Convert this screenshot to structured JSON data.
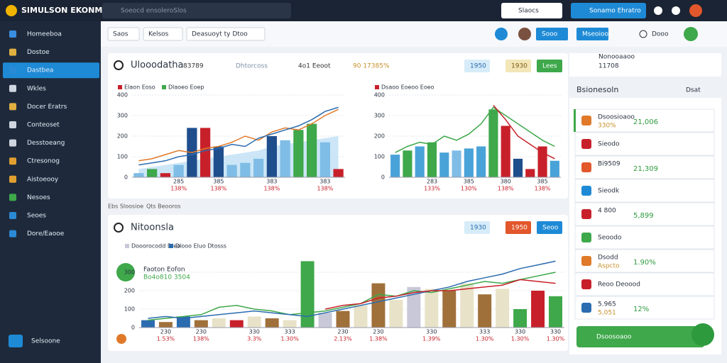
{
  "header": {
    "logo": "SIMULSON EKONMIA",
    "search": "Soeocd ensoleroSlos",
    "search_button": "Slaocs",
    "primary_button": "Sonamo Ehratro"
  },
  "sidebar": {
    "items": [
      "Homeeboa",
      "Dostoe",
      "Dastbea",
      "Wkles",
      "Docer Eratrs",
      "Conteoset",
      "Desstoeang",
      "Ctresonog",
      "Aistoeooy",
      "Nesoes",
      "Seoes",
      "Dore/Eaooe"
    ],
    "active": 2,
    "footer": "Selsoone"
  },
  "toolbar": {
    "filters": [
      "Saos",
      "Kelsos",
      "Deasuoyt ty Dtoo"
    ],
    "buttons": [
      "Sooo",
      "Mseoioos"
    ],
    "menu": "Dooo"
  },
  "panel1": {
    "title": "Ulooodatha",
    "stats": [
      "83789",
      "Dhtorcoss",
      "4o1 Eeoot",
      "90 17385%"
    ],
    "badges": [
      "1950",
      "1930",
      "Lees"
    ],
    "charts": [
      {
        "type": "bar",
        "legend": [
          "Elaon Eoso",
          "Dlaoeo Eoep"
        ],
        "legend_colors": [
          "#c8202a",
          "#3ea84a"
        ],
        "ylim": [
          0,
          400
        ],
        "yticks": [
          0,
          100,
          200,
          300,
          400
        ],
        "categories": [
          null,
          null,
          null,
          "285",
          null,
          null,
          "385",
          null,
          null,
          null,
          "383",
          null,
          null,
          null,
          "383",
          null
        ],
        "category_notes": [
          null,
          null,
          null,
          "138%",
          null,
          null,
          "138%",
          null,
          null,
          null,
          "138%",
          null,
          null,
          null,
          "138%",
          null
        ],
        "bars": {
          "values": [
            20,
            40,
            20,
            60,
            240,
            240,
            150,
            60,
            70,
            90,
            200,
            180,
            230,
            260,
            170,
            40
          ],
          "colors": [
            "#7fbde6",
            "#3ea84a",
            "#c8202a",
            "#7fbde6",
            "#1f4e8c",
            "#c8202a",
            "#1f4e8c",
            "#7fbde6",
            "#7fbde6",
            "#7fbde6",
            "#1f4e8c",
            "#7fbde6",
            "#3ea84a",
            "#3ea84a",
            "#7fbde6",
            "#c8202a"
          ]
        },
        "area": {
          "color": "#bfe0f5",
          "values": [
            40,
            50,
            60,
            70,
            80,
            90,
            100,
            110,
            120,
            130,
            150,
            160,
            170,
            180,
            190,
            200
          ]
        },
        "lines": [
          {
            "color": "#e07a2a",
            "values": [
              80,
              90,
              110,
              130,
              120,
              140,
              150,
              170,
              200,
              180,
              220,
              240,
              230,
              260,
              300,
              330
            ]
          },
          {
            "color": "#2b6cb0",
            "values": [
              60,
              70,
              80,
              100,
              110,
              130,
              140,
              160,
              150,
              190,
              210,
              230,
              250,
              280,
              320,
              340
            ]
          }
        ]
      },
      {
        "type": "bar",
        "legend": [
          "Dsaoo Eoeoo Eoeo"
        ],
        "legend_colors": [
          "#c8202a"
        ],
        "ylim": [
          0,
          400
        ],
        "yticks": [
          0,
          100,
          200,
          300,
          400
        ],
        "categories": [
          null,
          null,
          null,
          "283",
          null,
          null,
          "385",
          null,
          null,
          "380",
          null,
          null,
          "385",
          null
        ],
        "category_notes": [
          null,
          null,
          null,
          "133%",
          null,
          null,
          "130%",
          null,
          null,
          "138%",
          null,
          null,
          "138%",
          null
        ],
        "bars": {
          "values": [
            110,
            130,
            150,
            170,
            120,
            130,
            140,
            150,
            330,
            250,
            90,
            40,
            150,
            80
          ],
          "colors": [
            "#4aa3d8",
            "#3ea84a",
            "#4aa3d8",
            "#3ea84a",
            "#4aa3d8",
            "#7fbde6",
            "#4aa3d8",
            "#4aa3d8",
            "#3ea84a",
            "#c8202a",
            "#1f4e8c",
            "#c8202a",
            "#c8202a",
            "#4aa3d8"
          ]
        },
        "lines": [
          {
            "color": "#3ea84a",
            "values": [
              120,
              150,
              170,
              160,
              200,
              180,
              210,
              260,
              340,
              300,
              260,
              220,
              180,
              150
            ]
          },
          {
            "color": "#c8202a",
            "values": [
              null,
              null,
              null,
              null,
              null,
              null,
              null,
              null,
              350,
              280,
              200,
              160,
              120,
              90
            ]
          }
        ]
      }
    ]
  },
  "strip": [
    "Ebs Sloosioe",
    "Qts Beooros"
  ],
  "panel2": {
    "title": "Nitoonsla",
    "badges": [
      "1930",
      "1950",
      "Seoo"
    ],
    "note_title": "Faoton Eofon",
    "note_value": "Bo4o810 3504",
    "chart": {
      "type": "bar",
      "legend": [
        "Dooorocodd Dleo",
        "Dlooo Eluo Dtosss"
      ],
      "legend_colors": [
        "#c8c8d8",
        "#2b6cb0"
      ],
      "ylim": [
        0,
        400
      ],
      "yticks": [
        0,
        100,
        200,
        300
      ],
      "categories": [
        null,
        "230",
        null,
        "230",
        null,
        null,
        "330",
        null,
        "333",
        null,
        null,
        "230",
        null,
        "230",
        null,
        null,
        "330",
        null,
        null,
        "333",
        null,
        "330",
        null,
        "330"
      ],
      "category_notes": [
        null,
        "1.53%",
        null,
        "138%",
        null,
        null,
        "3.3%",
        null,
        "1.30%",
        null,
        null,
        "2.13%",
        null,
        "1.38%",
        null,
        null,
        "1.39%",
        null,
        null,
        "1.30%",
        null,
        "1.30%",
        null,
        "1.30%"
      ],
      "bars": {
        "values": [
          40,
          30,
          60,
          40,
          50,
          40,
          60,
          50,
          40,
          360,
          80,
          90,
          120,
          240,
          150,
          220,
          210,
          200,
          240,
          180,
          210,
          100,
          200,
          170
        ],
        "colors": [
          "#2b6cb0",
          "#a0703a",
          "#2b6cb0",
          "#a0703a",
          "#e8e2c8",
          "#c8202a",
          "#e8e2c8",
          "#a0703a",
          "#e8e2c8",
          "#3ea84a",
          "#c8c8d8",
          "#a0703a",
          "#e8e2c8",
          "#a0703a",
          "#e8e2c8",
          "#c8c8d8",
          "#e8e2c8",
          "#a0703a",
          "#e8e2c8",
          "#a0703a",
          "#e8e2c8",
          "#3ea84a",
          "#c8202a",
          "#3ea84a"
        ]
      },
      "lines": [
        {
          "color": "#3ea84a",
          "values": [
            40,
            50,
            60,
            70,
            110,
            120,
            100,
            90,
            70,
            80,
            90,
            110,
            130,
            180,
            170,
            200,
            190,
            210,
            230,
            250,
            240,
            260,
            280,
            300
          ]
        },
        {
          "color": "#2b6cb0",
          "values": [
            50,
            60,
            50,
            60,
            70,
            80,
            90,
            80,
            70,
            60,
            80,
            100,
            120,
            140,
            160,
            180,
            200,
            220,
            250,
            270,
            290,
            320,
            340,
            360
          ]
        },
        {
          "color": "#c8202a",
          "values": [
            null,
            null,
            null,
            null,
            null,
            null,
            null,
            null,
            null,
            null,
            100,
            120,
            130,
            160,
            170,
            190,
            200,
            200,
            210,
            220,
            230,
            260,
            250,
            240
          ]
        }
      ]
    }
  },
  "side": {
    "title": "Nonooaaoo",
    "subtitle": "11708",
    "heading": "Bsionesoln",
    "link": "Dsat",
    "items": [
      {
        "label": "Dsoosioaoo",
        "value": "330%",
        "amount": "21,006"
      },
      {
        "label": "Sieodo"
      },
      {
        "label": "Bi9509",
        "amount": "21,309"
      },
      {
        "label": "Sieodk"
      },
      {
        "label": "4 800",
        "amount": "5,899"
      },
      {
        "label": "Seoodo"
      },
      {
        "label": "Dsodd",
        "value": "Aspcto",
        "amount": "1.90%"
      },
      {
        "label": "Reoo Deoood"
      },
      {
        "label": "5.965",
        "value": "5,051",
        "amount": "12%"
      }
    ],
    "button": "Dsoosoaoo"
  }
}
